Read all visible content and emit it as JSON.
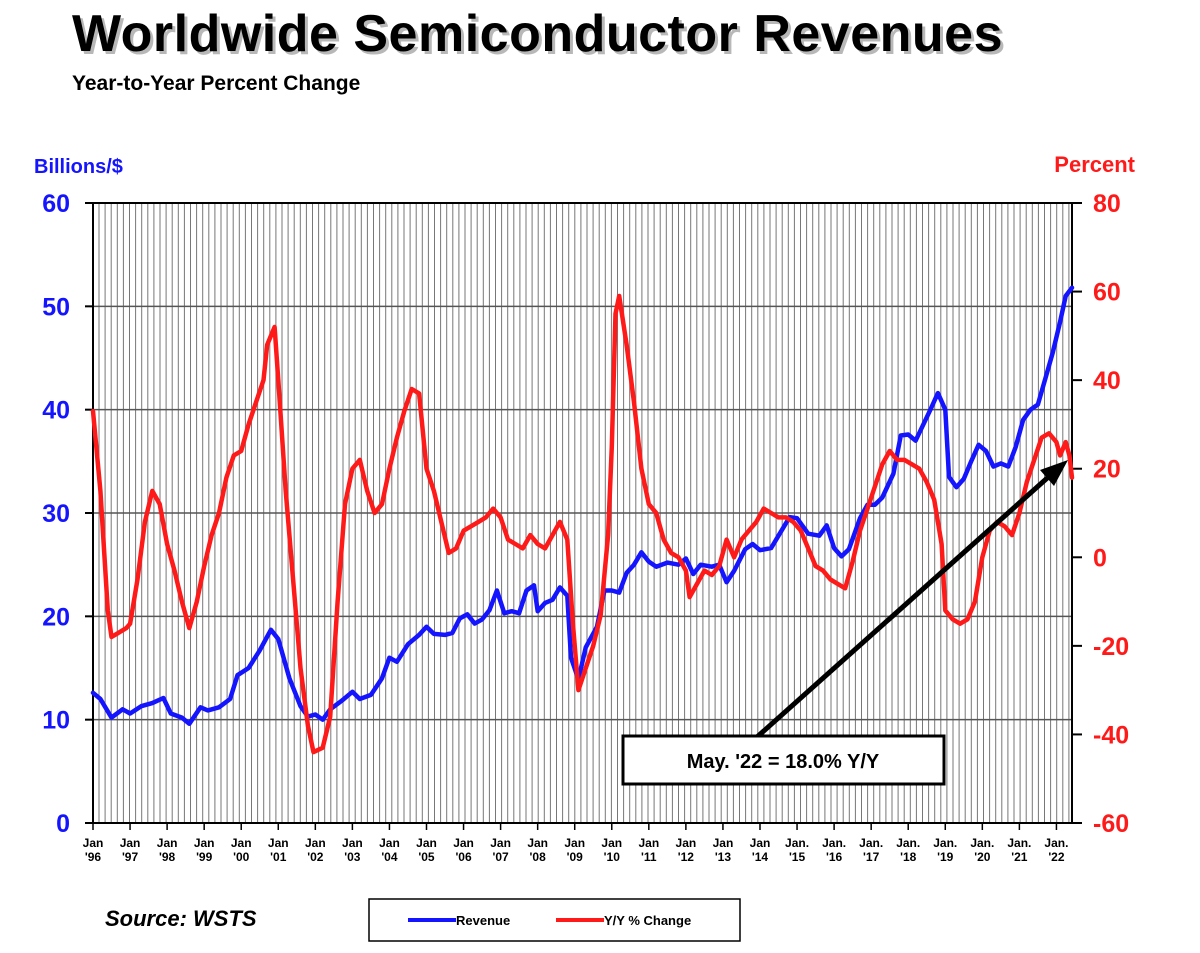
{
  "title": "Worldwide Semiconductor Revenues",
  "subtitle": "Year-to-Year Percent Change",
  "source": "Source: WSTS",
  "annotation": "May. '22 = 18.0% Y/Y",
  "colors": {
    "revenue": "#1414ff",
    "yoy": "#ff1a1a",
    "axis_left": "#1414ff",
    "axis_right": "#ff1a1a"
  },
  "chart_data": {
    "type": "line",
    "x_axis": {
      "tick_labels": [
        {
          "top": "Jan",
          "bottom": "'96"
        },
        {
          "top": "Jan",
          "bottom": "'97"
        },
        {
          "top": "Jan",
          "bottom": "'98"
        },
        {
          "top": "Jan",
          "bottom": "'99"
        },
        {
          "top": "Jan",
          "bottom": "'00"
        },
        {
          "top": "Jan",
          "bottom": "'01"
        },
        {
          "top": "Jan",
          "bottom": "'02"
        },
        {
          "top": "Jan",
          "bottom": "'03"
        },
        {
          "top": "Jan",
          "bottom": "'04"
        },
        {
          "top": "Jan",
          "bottom": "'05"
        },
        {
          "top": "Jan",
          "bottom": "'06"
        },
        {
          "top": "Jan",
          "bottom": "'07"
        },
        {
          "top": "Jan",
          "bottom": "'08"
        },
        {
          "top": "Jan",
          "bottom": "'09"
        },
        {
          "top": "Jan",
          "bottom": "'10"
        },
        {
          "top": "Jan",
          "bottom": "'11"
        },
        {
          "top": "Jan",
          "bottom": "'12"
        },
        {
          "top": "Jan",
          "bottom": "'13"
        },
        {
          "top": "Jan",
          "bottom": "'14"
        },
        {
          "top": "Jan.",
          "bottom": "'15"
        },
        {
          "top": "Jan.",
          "bottom": "'16"
        },
        {
          "top": "Jan.",
          "bottom": "'17"
        },
        {
          "top": "Jan.",
          "bottom": "'18"
        },
        {
          "top": "Jan.",
          "bottom": "'19"
        },
        {
          "top": "Jan.",
          "bottom": "'20"
        },
        {
          "top": "Jan.",
          "bottom": "'21"
        },
        {
          "top": "Jan.",
          "bottom": "'22"
        }
      ],
      "range": [
        1996.0,
        2022.42
      ]
    },
    "y_left": {
      "label": "Billions/$",
      "range": [
        0,
        60
      ],
      "ticks": [
        0,
        10,
        20,
        30,
        40,
        50,
        60
      ]
    },
    "y_right": {
      "label": "Percent",
      "range": [
        -60,
        80
      ],
      "ticks": [
        -60,
        -40,
        -20,
        0,
        20,
        40,
        60,
        80
      ]
    },
    "grid": "horizontal and vertical",
    "legend": {
      "position": "bottom-center"
    },
    "series": [
      {
        "name": "Revenue",
        "axis": "left",
        "color": "#1414ff",
        "points": [
          [
            1996.0,
            12.6
          ],
          [
            1996.2,
            12.0
          ],
          [
            1996.5,
            10.2
          ],
          [
            1996.8,
            11.0
          ],
          [
            1997.0,
            10.6
          ],
          [
            1997.3,
            11.3
          ],
          [
            1997.6,
            11.6
          ],
          [
            1997.9,
            12.1
          ],
          [
            1998.1,
            10.6
          ],
          [
            1998.4,
            10.2
          ],
          [
            1998.6,
            9.6
          ],
          [
            1998.9,
            11.2
          ],
          [
            1999.1,
            10.9
          ],
          [
            1999.4,
            11.2
          ],
          [
            1999.7,
            12.0
          ],
          [
            1999.9,
            14.3
          ],
          [
            2000.2,
            15.0
          ],
          [
            2000.5,
            16.7
          ],
          [
            2000.8,
            18.7
          ],
          [
            2001.0,
            17.8
          ],
          [
            2001.3,
            14.0
          ],
          [
            2001.6,
            11.3
          ],
          [
            2001.8,
            10.3
          ],
          [
            2002.0,
            10.5
          ],
          [
            2002.2,
            10.0
          ],
          [
            2002.4,
            11.0
          ],
          [
            2002.7,
            11.8
          ],
          [
            2003.0,
            12.7
          ],
          [
            2003.2,
            12.0
          ],
          [
            2003.5,
            12.4
          ],
          [
            2003.8,
            14.0
          ],
          [
            2004.0,
            16.0
          ],
          [
            2004.2,
            15.6
          ],
          [
            2004.5,
            17.3
          ],
          [
            2004.8,
            18.2
          ],
          [
            2005.0,
            19.0
          ],
          [
            2005.2,
            18.3
          ],
          [
            2005.5,
            18.2
          ],
          [
            2005.7,
            18.4
          ],
          [
            2005.9,
            19.8
          ],
          [
            2006.1,
            20.2
          ],
          [
            2006.3,
            19.3
          ],
          [
            2006.5,
            19.7
          ],
          [
            2006.7,
            20.6
          ],
          [
            2006.9,
            22.5
          ],
          [
            2007.1,
            20.3
          ],
          [
            2007.3,
            20.5
          ],
          [
            2007.5,
            20.3
          ],
          [
            2007.7,
            22.5
          ],
          [
            2007.9,
            23.0
          ],
          [
            2008.0,
            20.5
          ],
          [
            2008.2,
            21.3
          ],
          [
            2008.4,
            21.6
          ],
          [
            2008.6,
            22.8
          ],
          [
            2008.8,
            22.0
          ],
          [
            2008.9,
            16.0
          ],
          [
            2009.1,
            13.9
          ],
          [
            2009.3,
            17.0
          ],
          [
            2009.6,
            19.0
          ],
          [
            2009.8,
            22.5
          ],
          [
            2010.0,
            22.5
          ],
          [
            2010.2,
            22.3
          ],
          [
            2010.4,
            24.2
          ],
          [
            2010.6,
            25.0
          ],
          [
            2010.8,
            26.2
          ],
          [
            2011.0,
            25.3
          ],
          [
            2011.2,
            24.8
          ],
          [
            2011.5,
            25.2
          ],
          [
            2011.8,
            25.0
          ],
          [
            2012.0,
            25.6
          ],
          [
            2012.2,
            24.1
          ],
          [
            2012.4,
            25.0
          ],
          [
            2012.7,
            24.8
          ],
          [
            2012.9,
            25.0
          ],
          [
            2013.1,
            23.3
          ],
          [
            2013.3,
            24.4
          ],
          [
            2013.6,
            26.5
          ],
          [
            2013.8,
            27.0
          ],
          [
            2014.0,
            26.4
          ],
          [
            2014.3,
            26.6
          ],
          [
            2014.5,
            27.8
          ],
          [
            2014.8,
            29.6
          ],
          [
            2015.0,
            29.5
          ],
          [
            2015.3,
            28.0
          ],
          [
            2015.6,
            27.8
          ],
          [
            2015.8,
            28.8
          ],
          [
            2016.0,
            26.6
          ],
          [
            2016.2,
            25.8
          ],
          [
            2016.4,
            26.5
          ],
          [
            2016.7,
            29.5
          ],
          [
            2016.9,
            30.8
          ],
          [
            2017.1,
            30.8
          ],
          [
            2017.3,
            31.5
          ],
          [
            2017.6,
            33.8
          ],
          [
            2017.8,
            37.5
          ],
          [
            2018.0,
            37.6
          ],
          [
            2018.2,
            37.0
          ],
          [
            2018.4,
            38.5
          ],
          [
            2018.6,
            40.0
          ],
          [
            2018.8,
            41.6
          ],
          [
            2019.0,
            40.0
          ],
          [
            2019.1,
            33.5
          ],
          [
            2019.3,
            32.5
          ],
          [
            2019.5,
            33.3
          ],
          [
            2019.7,
            35.0
          ],
          [
            2019.9,
            36.6
          ],
          [
            2020.1,
            36.0
          ],
          [
            2020.3,
            34.5
          ],
          [
            2020.5,
            34.8
          ],
          [
            2020.7,
            34.5
          ],
          [
            2020.9,
            36.4
          ],
          [
            2021.1,
            39.0
          ],
          [
            2021.3,
            40.0
          ],
          [
            2021.5,
            40.5
          ],
          [
            2021.7,
            43.0
          ],
          [
            2021.9,
            45.5
          ],
          [
            2022.1,
            48.5
          ],
          [
            2022.25,
            51.0
          ],
          [
            2022.42,
            51.8
          ]
        ]
      },
      {
        "name": "Y/Y % Change",
        "axis": "right",
        "color": "#ff1a1a",
        "points": [
          [
            1996.0,
            33
          ],
          [
            1996.2,
            15
          ],
          [
            1996.4,
            -12
          ],
          [
            1996.5,
            -18
          ],
          [
            1996.7,
            -17
          ],
          [
            1996.9,
            -16
          ],
          [
            1997.0,
            -15
          ],
          [
            1997.2,
            -5
          ],
          [
            1997.4,
            8
          ],
          [
            1997.6,
            15
          ],
          [
            1997.8,
            12
          ],
          [
            1998.0,
            3
          ],
          [
            1998.2,
            -3
          ],
          [
            1998.4,
            -10
          ],
          [
            1998.6,
            -16
          ],
          [
            1998.8,
            -10
          ],
          [
            1999.0,
            -2
          ],
          [
            1999.2,
            5
          ],
          [
            1999.4,
            10
          ],
          [
            1999.6,
            18
          ],
          [
            1999.8,
            23
          ],
          [
            2000.0,
            24
          ],
          [
            2000.2,
            30
          ],
          [
            2000.4,
            35
          ],
          [
            2000.6,
            40
          ],
          [
            2000.7,
            48
          ],
          [
            2000.9,
            52
          ],
          [
            2001.0,
            40
          ],
          [
            2001.2,
            15
          ],
          [
            2001.4,
            -5
          ],
          [
            2001.6,
            -25
          ],
          [
            2001.8,
            -38
          ],
          [
            2001.95,
            -44
          ],
          [
            2002.2,
            -43
          ],
          [
            2002.4,
            -36
          ],
          [
            2002.6,
            -10
          ],
          [
            2002.8,
            12
          ],
          [
            2003.0,
            20
          ],
          [
            2003.2,
            22
          ],
          [
            2003.4,
            15
          ],
          [
            2003.6,
            10
          ],
          [
            2003.8,
            12
          ],
          [
            2004.0,
            20
          ],
          [
            2004.2,
            27
          ],
          [
            2004.4,
            33
          ],
          [
            2004.6,
            38
          ],
          [
            2004.8,
            37
          ],
          [
            2005.0,
            20
          ],
          [
            2005.2,
            15
          ],
          [
            2005.4,
            8
          ],
          [
            2005.6,
            1
          ],
          [
            2005.8,
            2
          ],
          [
            2006.0,
            6
          ],
          [
            2006.2,
            7
          ],
          [
            2006.4,
            8
          ],
          [
            2006.6,
            9
          ],
          [
            2006.8,
            11
          ],
          [
            2007.0,
            9
          ],
          [
            2007.2,
            4
          ],
          [
            2007.4,
            3
          ],
          [
            2007.6,
            2
          ],
          [
            2007.8,
            5
          ],
          [
            2008.0,
            3
          ],
          [
            2008.2,
            2
          ],
          [
            2008.4,
            5
          ],
          [
            2008.6,
            8
          ],
          [
            2008.8,
            4
          ],
          [
            2008.95,
            -15
          ],
          [
            2009.1,
            -30
          ],
          [
            2009.3,
            -25
          ],
          [
            2009.5,
            -20
          ],
          [
            2009.7,
            -13
          ],
          [
            2009.9,
            5
          ],
          [
            2010.0,
            25
          ],
          [
            2010.1,
            55
          ],
          [
            2010.2,
            59
          ],
          [
            2010.4,
            48
          ],
          [
            2010.6,
            35
          ],
          [
            2010.8,
            20
          ],
          [
            2011.0,
            12
          ],
          [
            2011.2,
            10
          ],
          [
            2011.4,
            4
          ],
          [
            2011.6,
            1
          ],
          [
            2011.8,
            0
          ],
          [
            2012.0,
            -3
          ],
          [
            2012.1,
            -9
          ],
          [
            2012.3,
            -6
          ],
          [
            2012.5,
            -3
          ],
          [
            2012.7,
            -4
          ],
          [
            2012.9,
            -2
          ],
          [
            2013.1,
            4
          ],
          [
            2013.3,
            0
          ],
          [
            2013.5,
            4
          ],
          [
            2013.7,
            6
          ],
          [
            2013.9,
            8
          ],
          [
            2014.1,
            11
          ],
          [
            2014.3,
            10
          ],
          [
            2014.5,
            9
          ],
          [
            2014.7,
            9
          ],
          [
            2014.9,
            8
          ],
          [
            2015.1,
            6
          ],
          [
            2015.3,
            2
          ],
          [
            2015.5,
            -2
          ],
          [
            2015.7,
            -3
          ],
          [
            2015.9,
            -5
          ],
          [
            2016.1,
            -6
          ],
          [
            2016.3,
            -7
          ],
          [
            2016.5,
            -1
          ],
          [
            2016.7,
            6
          ],
          [
            2016.9,
            11
          ],
          [
            2017.1,
            16
          ],
          [
            2017.3,
            21
          ],
          [
            2017.5,
            24
          ],
          [
            2017.7,
            22
          ],
          [
            2017.9,
            22
          ],
          [
            2018.1,
            21
          ],
          [
            2018.3,
            20
          ],
          [
            2018.5,
            17
          ],
          [
            2018.7,
            13
          ],
          [
            2018.9,
            3
          ],
          [
            2019.0,
            -12
          ],
          [
            2019.2,
            -14
          ],
          [
            2019.4,
            -15
          ],
          [
            2019.6,
            -14
          ],
          [
            2019.8,
            -10
          ],
          [
            2020.0,
            0
          ],
          [
            2020.2,
            6
          ],
          [
            2020.4,
            8
          ],
          [
            2020.6,
            7
          ],
          [
            2020.8,
            5
          ],
          [
            2021.0,
            10
          ],
          [
            2021.2,
            17
          ],
          [
            2021.4,
            22
          ],
          [
            2021.6,
            27
          ],
          [
            2021.8,
            28
          ],
          [
            2022.0,
            26
          ],
          [
            2022.1,
            23
          ],
          [
            2022.25,
            26
          ],
          [
            2022.35,
            23
          ],
          [
            2022.42,
            18
          ]
        ]
      }
    ]
  }
}
